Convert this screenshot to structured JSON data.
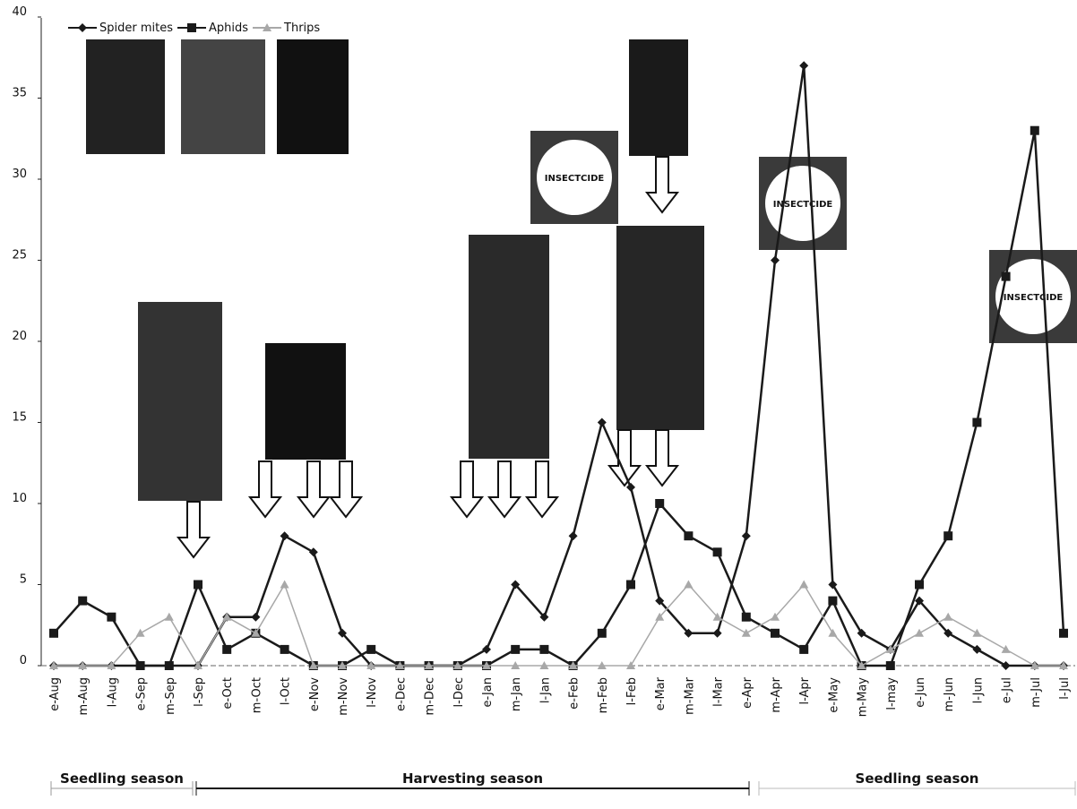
{
  "chart_data": {
    "type": "line",
    "categories": [
      "e-Aug",
      "m-Aug",
      "l-Aug",
      "e-Sep",
      "m-Sep",
      "l-Sep",
      "e-Oct",
      "m-Oct",
      "l-Oct",
      "e-Nov",
      "m-Nov",
      "l-Nov",
      "e-Dec",
      "m-Dec",
      "l-Dec",
      "e-Jan",
      "m-Jan",
      "l-Jan",
      "e-Feb",
      "m-Feb",
      "l-Feb",
      "e-Mar",
      "m-Mar",
      "l-Mar",
      "e-Apr",
      "m-Apr",
      "l-Apr",
      "e-May",
      "m-May",
      "l-may",
      "e-Jun",
      "m-Jun",
      "l-Jun",
      "e-Jul",
      "m-Jul",
      "l-Jul"
    ],
    "series": [
      {
        "name": "Spider mites",
        "color": "#1a1a1a",
        "marker": "diamond",
        "values": [
          0,
          0,
          0,
          0,
          0,
          0,
          3,
          3,
          8,
          7,
          2,
          0,
          0,
          0,
          0,
          1,
          5,
          3,
          8,
          15,
          11,
          4,
          2,
          2,
          8,
          25,
          37,
          5,
          2,
          1,
          4,
          2,
          1,
          0,
          0,
          0
        ]
      },
      {
        "name": "Aphids",
        "color": "#1a1a1a",
        "marker": "square",
        "values": [
          2,
          4,
          3,
          0,
          0,
          5,
          1,
          2,
          1,
          0,
          0,
          1,
          0,
          0,
          0,
          0,
          1,
          1,
          0,
          2,
          5,
          10,
          8,
          7,
          3,
          2,
          1,
          4,
          0,
          0,
          5,
          8,
          15,
          24,
          33,
          2
        ]
      },
      {
        "name": "Thrips",
        "color": "#a8a8a8",
        "marker": "triangle",
        "values": [
          0,
          0,
          0,
          2,
          3,
          0,
          3,
          2,
          5,
          0,
          0,
          0,
          0,
          0,
          0,
          0,
          0,
          0,
          0,
          0,
          0,
          3,
          5,
          3,
          2,
          3,
          5,
          2,
          0,
          1,
          2,
          3,
          2,
          1,
          0,
          0
        ]
      }
    ],
    "ylim": [
      0,
      40
    ],
    "yticks": [
      0,
      5,
      10,
      15,
      20,
      25,
      30,
      35,
      40
    ],
    "grid": false,
    "legend": "top-left",
    "insecticide_labels": [
      "INSECTCIDE",
      "INSECTCIDE",
      "INSECTCIDE"
    ],
    "seasons": [
      "Seedling season",
      "Harvesting season",
      "Seedling season"
    ]
  }
}
